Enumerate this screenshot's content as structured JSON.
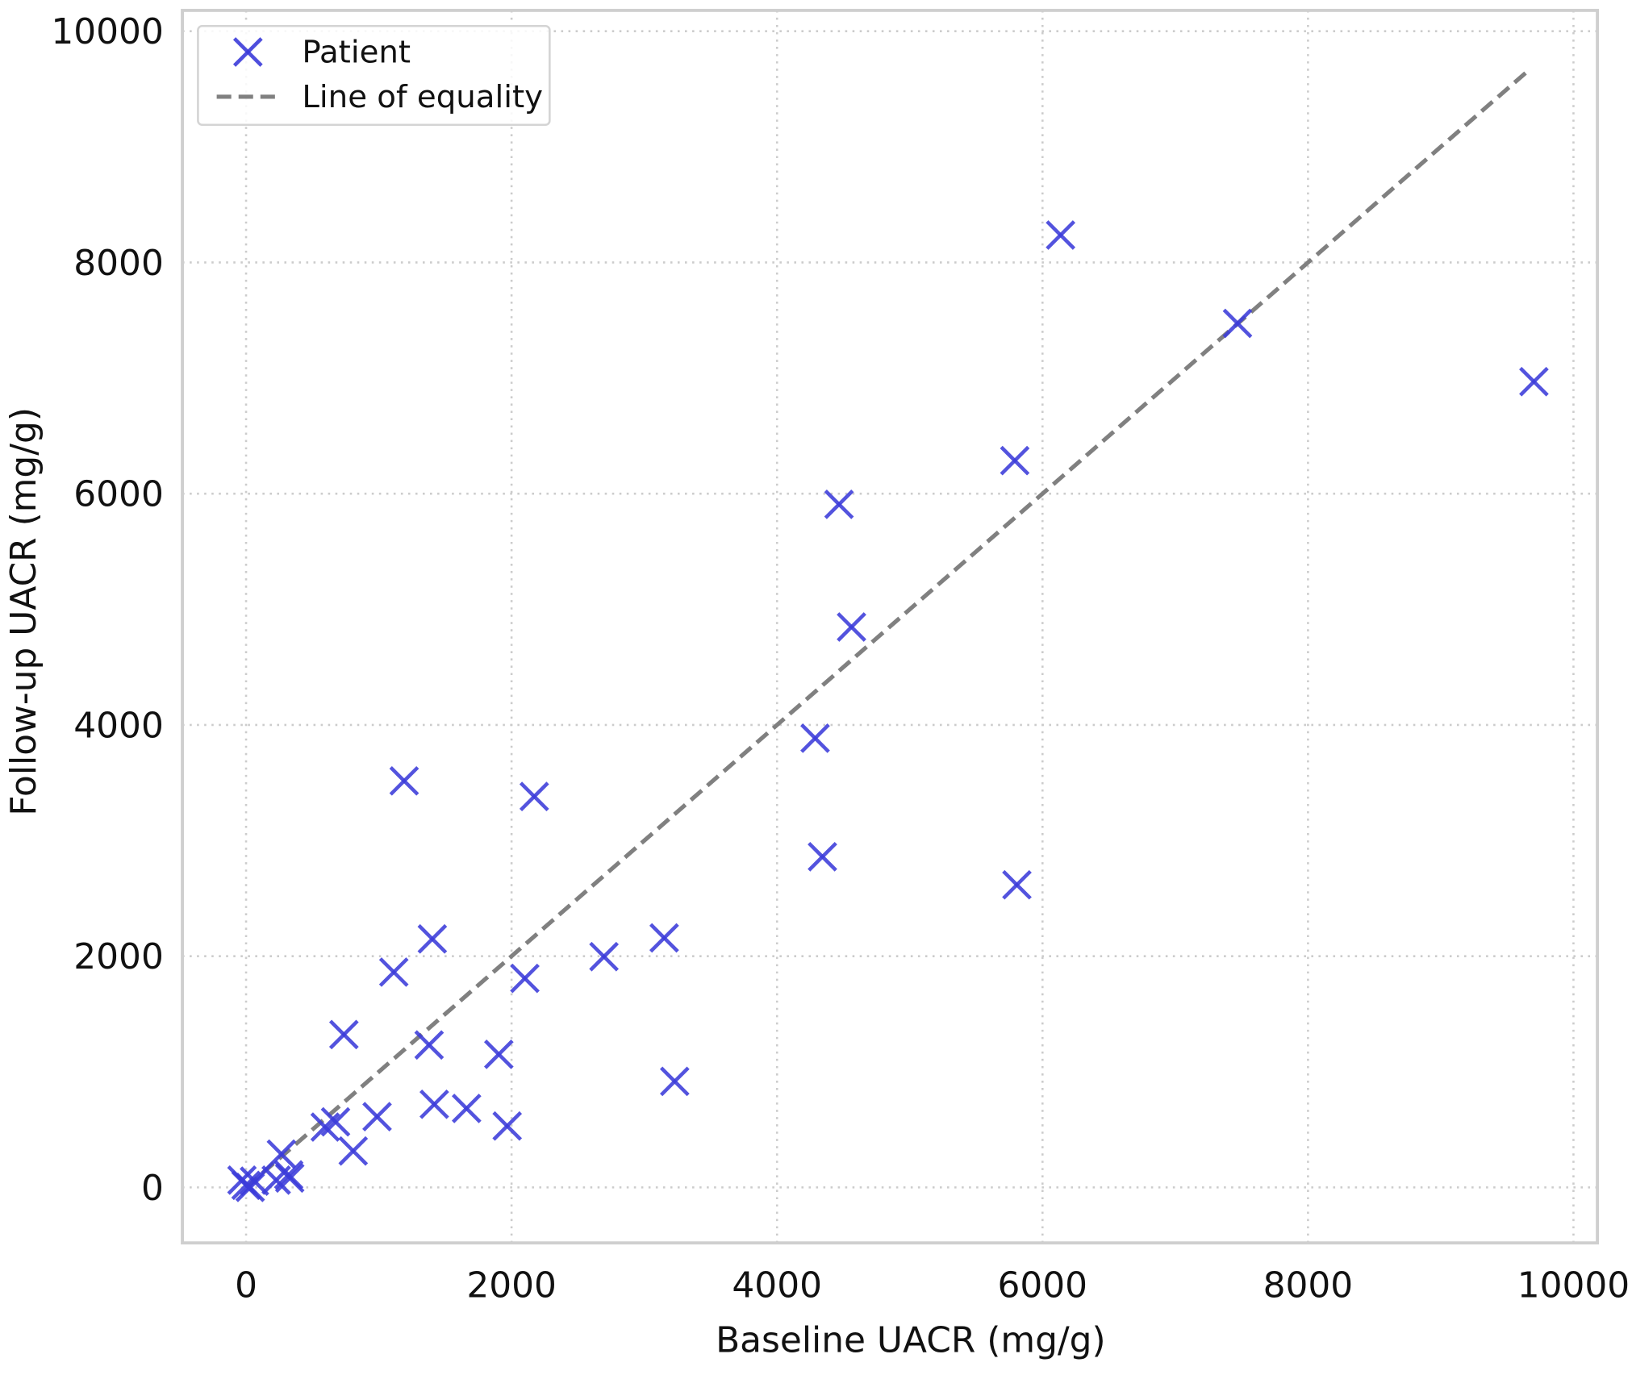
{
  "chart_data": {
    "type": "scatter",
    "title": "",
    "xlabel": "Baseline UACR (mg/g)",
    "ylabel": "Follow-up UACR (mg/g)",
    "xlim": [
      -480,
      10180
    ],
    "ylim": [
      -480,
      10180
    ],
    "xticks": [
      0,
      2000,
      4000,
      6000,
      8000,
      10000
    ],
    "yticks": [
      0,
      2000,
      4000,
      6000,
      8000,
      10000
    ],
    "xtick_labels": [
      "0",
      "2000",
      "4000",
      "6000",
      "8000",
      "10000"
    ],
    "ytick_labels": [
      "0",
      "2000",
      "4000",
      "6000",
      "8000",
      "10000"
    ],
    "grid": true,
    "legend": {
      "placement": "top-left",
      "entries": [
        "Patient",
        "Line of equality"
      ]
    },
    "series": [
      {
        "name": "Patient",
        "marker": "x",
        "color": "#3b3bd9",
        "points": [
          [
            6136,
            8237
          ],
          [
            7469,
            7473
          ],
          [
            9702,
            6969
          ],
          [
            5791,
            6286
          ],
          [
            4467,
            5908
          ],
          [
            4561,
            4847
          ],
          [
            4287,
            3885
          ],
          [
            1191,
            3516
          ],
          [
            2171,
            3381
          ],
          [
            4342,
            2860
          ],
          [
            5807,
            2617
          ],
          [
            1403,
            2149
          ],
          [
            3150,
            2158
          ],
          [
            2696,
            1996
          ],
          [
            1113,
            1862
          ],
          [
            2100,
            1808
          ],
          [
            737,
            1322
          ],
          [
            1379,
            1232
          ],
          [
            1904,
            1151
          ],
          [
            3229,
            917
          ],
          [
            1418,
            719
          ],
          [
            1661,
            683
          ],
          [
            1967,
            531
          ],
          [
            987,
            612
          ],
          [
            674,
            567
          ],
          [
            596,
            522
          ],
          [
            807,
            315
          ],
          [
            266,
            288
          ],
          [
            227,
            63
          ],
          [
            321,
            108
          ],
          [
            329,
            81
          ],
          [
            63,
            54
          ],
          [
            0,
            18
          ],
          [
            -31,
            63
          ],
          [
            31,
            0
          ]
        ]
      },
      {
        "name": "Line of equality",
        "style": "dashed",
        "color": "#808080",
        "x": [
          0,
          9650
        ],
        "y": [
          0,
          9650
        ]
      }
    ]
  }
}
